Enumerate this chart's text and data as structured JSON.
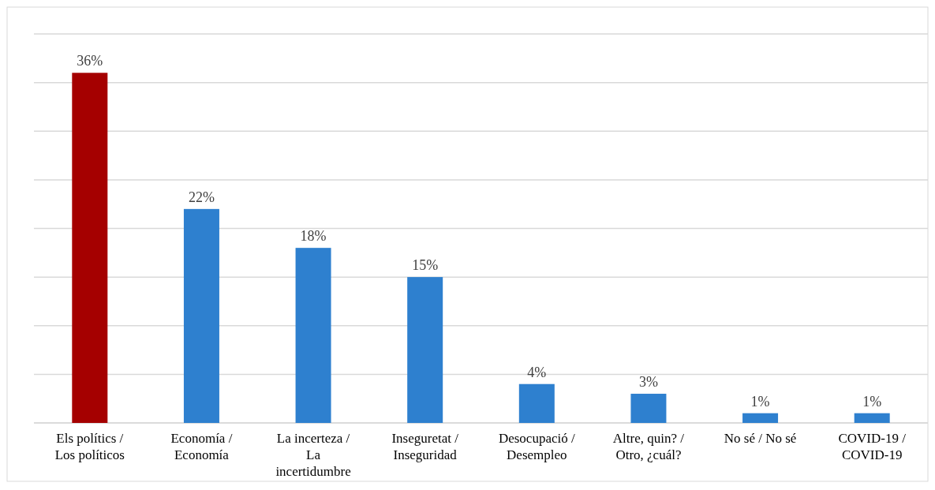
{
  "chart_data": {
    "type": "bar",
    "categories": [
      "Els polítics / Los políticos",
      "Economía / Economía",
      "La incerteza / La incertidumbre",
      "Inseguretat / Inseguridad",
      "Desocupació / Desempleo",
      "Altre, quin? / Otro, ¿cuál?",
      "No sé / No sé",
      "COVID-19 / COVID-19"
    ],
    "values": [
      36,
      22,
      18,
      15,
      4,
      3,
      1,
      1
    ],
    "colors": [
      "#a50000",
      "#2e80cf",
      "#2e80cf",
      "#2e80cf",
      "#2e80cf",
      "#2e80cf",
      "#2e80cf",
      "#2e80cf"
    ],
    "value_labels": [
      "36%",
      "22%",
      "18%",
      "15%",
      "4%",
      "3%",
      "1%",
      "1%"
    ],
    "ylim": [
      0,
      40
    ],
    "yticks": [
      {
        "value": 0,
        "label": null
      },
      {
        "value": 5,
        "label": null
      },
      {
        "value": 10,
        "label": null
      },
      {
        "value": 15,
        "label": null
      },
      {
        "value": 20,
        "label": null
      },
      {
        "value": 25,
        "label": null
      },
      {
        "value": 30,
        "label": null
      },
      {
        "value": 35,
        "label": null
      },
      {
        "value": 40,
        "label": null
      }
    ],
    "grid": "y",
    "tick_labels": "x"
  }
}
